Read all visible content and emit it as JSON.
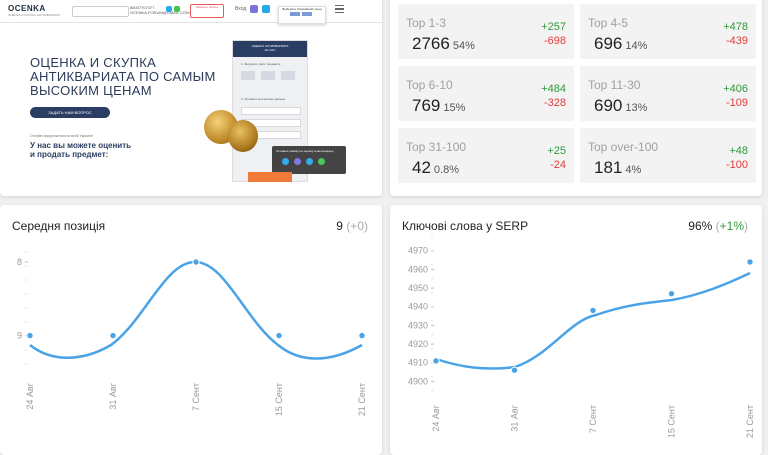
{
  "preview": {
    "logo": "OCENKA",
    "logo_sub": "ОЦЕНКА И СКУПКА АНТИКВАРИАТА",
    "phone": "88007707477",
    "email": "OCENKA.FORUM@GMAIL.COM",
    "order_button": "Заказать звонок",
    "enter": "Вход",
    "tooltip_text": "Выберите ближайший город",
    "tooltip_yes": "Да",
    "tooltip_no": "Нет",
    "hero_line1": "ОЦЕНКА И СКУПКА",
    "hero_line2": "АНТИКВАРИАТА ПО САМЫМ",
    "hero_line3": "ВЫСОКИМ ЦЕНАМ",
    "ask_button": "ЗАДАТЬ НАМ ВОПРОС",
    "small_note": "Онлайн-предложения по всей Украине",
    "sub_line1": "У нас вы можете оценить",
    "sub_line2": "и продать предмет:",
    "form_title": "ОЦЕНКА АНТИКВАРИАТА",
    "form_sub": "ЗА ЧАС",
    "form_step1": "1. Загрузите фото предмета",
    "form_step2": "2. Оставьте контактные данные",
    "popup_text": "Оставьте заявку на оценку в мессенджер"
  },
  "stats": [
    {
      "label": "Top 1-3",
      "value": "2766",
      "pct": "54%",
      "plus": "+257",
      "minus": "-698"
    },
    {
      "label": "Top 4-5",
      "value": "696",
      "pct": "14%",
      "plus": "+478",
      "minus": "-439"
    },
    {
      "label": "Top 6-10",
      "value": "769",
      "pct": "15%",
      "plus": "+484",
      "minus": "-328"
    },
    {
      "label": "Top 11-30",
      "value": "690",
      "pct": "13%",
      "plus": "+406",
      "minus": "-109"
    },
    {
      "label": "Top 31-100",
      "value": "42",
      "pct": "0.8%",
      "plus": "+25",
      "minus": "-24"
    },
    {
      "label": "Top over-100",
      "value": "181",
      "pct": "4%",
      "plus": "+48",
      "minus": "-100"
    }
  ],
  "avg_position": {
    "title": "Середня позиція",
    "value": "9",
    "delta": "(+0)"
  },
  "serp": {
    "title": "Ключові слова у SERP",
    "value": "96%",
    "delta_open": "(",
    "delta": "+1%",
    "delta_close": ")"
  },
  "colors": {
    "line": "#4aa3e6",
    "positive": "#2e9a3a",
    "negative": "#e03b3b"
  },
  "chart_data": [
    {
      "type": "line",
      "title": "Середня позиція",
      "categories": [
        "24 Авг",
        "31 Авг",
        "7 Сент",
        "15 Сент",
        "21 Сент"
      ],
      "values": [
        9,
        9,
        8,
        9,
        9
      ],
      "y_ticks": [
        8,
        9
      ],
      "ylim": [
        8,
        9.4
      ],
      "y_inverted": true,
      "grid": false
    },
    {
      "type": "line",
      "title": "Ключові слова у SERP",
      "categories": [
        "24 Авг",
        "31 Авг",
        "7 Сент",
        "15 Сент",
        "21 Сент"
      ],
      "values": [
        4911,
        4906,
        4938,
        4947,
        4964
      ],
      "y_ticks": [
        4900,
        4910,
        4920,
        4930,
        4940,
        4950,
        4960,
        4970
      ],
      "ylim": [
        4897,
        4972
      ],
      "grid": false
    }
  ]
}
